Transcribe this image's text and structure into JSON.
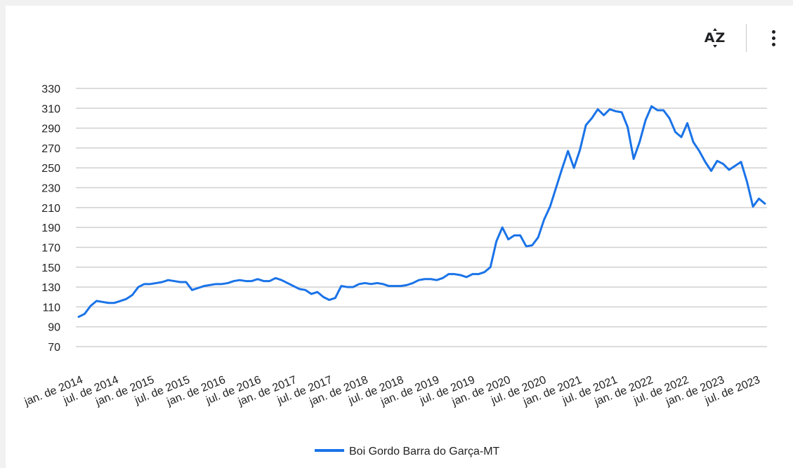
{
  "toolbar": {
    "sort_label": "AZ",
    "sort_icon": "sort-az-icon",
    "more_icon": "more-vert-icon"
  },
  "chart_data": {
    "type": "line",
    "title": "",
    "xlabel": "",
    "ylabel": "",
    "ylim": [
      70,
      330
    ],
    "yticks": [
      70,
      90,
      110,
      130,
      150,
      170,
      190,
      210,
      230,
      250,
      270,
      290,
      310,
      330
    ],
    "grid": true,
    "legend_position": "bottom",
    "x_tick_labels": [
      "jan. de 2014",
      "jul. de 2014",
      "jan. de 2015",
      "jul. de 2015",
      "jan. de 2016",
      "jul. de 2016",
      "jan. de 2017",
      "jul. de 2017",
      "jan. de 2018",
      "jul. de 2018",
      "jan. de 2019",
      "jul. de 2019",
      "jan. de 2020",
      "jul. de 2020",
      "jan. de 2021",
      "jul. de 2021",
      "jan. de 2022",
      "jul. de 2022",
      "jan. de 2023",
      "jul. de 2023"
    ],
    "series": [
      {
        "name": "Boi Gordo Barra do Garça-MT",
        "color": "#1a73e8",
        "values": [
          100,
          103,
          111,
          116,
          115,
          114,
          114,
          116,
          118,
          122,
          130,
          133,
          133,
          134,
          135,
          137,
          136,
          135,
          135,
          127,
          129,
          131,
          132,
          133,
          133,
          134,
          136,
          137,
          136,
          136,
          138,
          136,
          136,
          139,
          137,
          134,
          131,
          128,
          127,
          123,
          125,
          120,
          117,
          119,
          131,
          130,
          130,
          133,
          134,
          133,
          134,
          133,
          131,
          131,
          131,
          132,
          134,
          137,
          138,
          138,
          137,
          139,
          143,
          143,
          142,
          140,
          143,
          143,
          145,
          150,
          176,
          190,
          178,
          182,
          182,
          171,
          172,
          180,
          198,
          211,
          230,
          249,
          267,
          250,
          268,
          293,
          300,
          309,
          303,
          309,
          307,
          306,
          291,
          259,
          276,
          298,
          312,
          308,
          308,
          300,
          286,
          281,
          295,
          276,
          267,
          256,
          247,
          257,
          254,
          248,
          252,
          256,
          236,
          211,
          219,
          214
        ]
      }
    ]
  }
}
